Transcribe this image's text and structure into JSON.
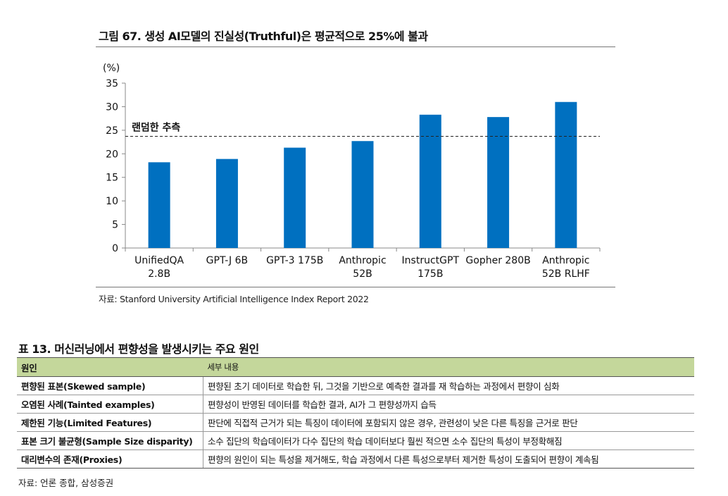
{
  "figure": {
    "title": "그림 67. 생성 AI모델의 진실성(Truthful)은 평균적으로 25%에 불과",
    "source": "자료: Stanford University Artificial Intelligence Index Report 2022"
  },
  "chart_data": {
    "type": "bar",
    "ylabel": "(%)",
    "ylim": [
      0,
      35
    ],
    "yticks": [
      0,
      5,
      10,
      15,
      20,
      25,
      30,
      35
    ],
    "categories": [
      [
        "UnifiedQA",
        "2.8B"
      ],
      [
        "GPT-J 6B"
      ],
      [
        "GPT-3 175B"
      ],
      [
        "Anthropic",
        "52B"
      ],
      [
        "InstructGPT",
        "175B"
      ],
      [
        "Gopher 280B"
      ],
      [
        "Anthropic",
        "52B RLHF"
      ]
    ],
    "values": [
      18.2,
      18.9,
      21.3,
      22.7,
      28.3,
      27.8,
      31.0
    ],
    "bar_color": "#0070c0",
    "reference_line": {
      "value": 23.7,
      "label": "랜덤한 추측"
    },
    "grid": false
  },
  "table": {
    "title": "표 13. 머신러닝에서 편향성을 발생시키는 주요 원인",
    "headers": [
      "원인",
      "세부 내용"
    ],
    "rows": [
      [
        "편향된 표본(Skewed sample)",
        "편향된 초기 데이터로 학습한 뒤, 그것을 기반으로 예측한 결과를 재 학습하는 과정에서 편향이 심화"
      ],
      [
        "오염된 사례(Tainted examples)",
        "편향성이 반영된 데이터를 학습한 결과, AI가 그 편향성까지 습득"
      ],
      [
        "제한된 기능(Limited Features)",
        "판단에 직접적 근거가 되는 특징이 데이터에 포함되지 않은 경우, 관련성이 낮은 다른 특징을 근거로 판단"
      ],
      [
        "표본 크기 불균형(Sample Size disparity)",
        "소수 집단의 학습데이터가 다수 집단의 학습 데이터보다 훨씬 적으면 소수 집단의 특성이 부정확해짐"
      ],
      [
        "대리변수의 존재(Proxies)",
        "편향의 원인이 되는 특성을 제거해도, 학습 과정에서 다른 특성으로부터 제거한 특성이 도출되어 편향이 계속됨"
      ]
    ],
    "source": "자료: 언론 종합, 삼성증권"
  }
}
